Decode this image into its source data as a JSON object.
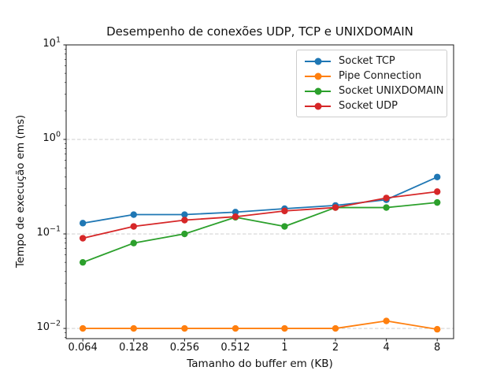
{
  "figure": {
    "background": "#ffffff",
    "text_color": "#111111",
    "spine_color": "#1a1a1a",
    "grid_color": "#c9c9c9"
  },
  "chart_data": {
    "type": "line",
    "title": "Desempenho de conexões UDP, TCP e UNIXDOMAIN",
    "xlabel": "Tamanho do buffer em (KB)",
    "ylabel": "Tempo de execução em (ms)",
    "x_scale": "log",
    "y_scale": "log",
    "xlim": [
      0.051,
      10
    ],
    "ylim": [
      0.0078,
      10
    ],
    "grid": {
      "axis": "y",
      "linestyle": "dashed",
      "which": "major"
    },
    "legend_position": "upper right",
    "x": [
      0.064,
      0.128,
      0.256,
      0.512,
      1,
      2,
      4,
      8
    ],
    "x_tick_labels": [
      "0.064",
      "0.128",
      "0.256",
      "0.512",
      "1",
      "2",
      "4",
      "8"
    ],
    "y_ticks": [
      {
        "value": 10,
        "base": "10",
        "exp": "1"
      },
      {
        "value": 1,
        "base": "10",
        "exp": "0"
      },
      {
        "value": 0.1,
        "base": "10",
        "exp": "−1"
      },
      {
        "value": 0.01,
        "base": "10",
        "exp": "−2"
      }
    ],
    "series": [
      {
        "name": "Socket TCP",
        "color": "#1f77b4",
        "marker": "circle",
        "values": [
          0.13,
          0.16,
          0.16,
          0.17,
          0.185,
          0.2,
          0.23,
          0.4
        ]
      },
      {
        "name": "Pipe Connection",
        "color": "#ff7f0e",
        "marker": "circle",
        "values": [
          0.01,
          0.01,
          0.01,
          0.01,
          0.01,
          0.01,
          0.012,
          0.0098
        ]
      },
      {
        "name": "Socket UNIXDOMAIN",
        "color": "#2ca02c",
        "marker": "circle",
        "values": [
          0.05,
          0.08,
          0.1,
          0.15,
          0.12,
          0.19,
          0.19,
          0.215
        ]
      },
      {
        "name": "Socket UDP",
        "color": "#d62728",
        "marker": "circle",
        "values": [
          0.09,
          0.12,
          0.14,
          0.152,
          0.175,
          0.19,
          0.24,
          0.28
        ]
      }
    ]
  }
}
